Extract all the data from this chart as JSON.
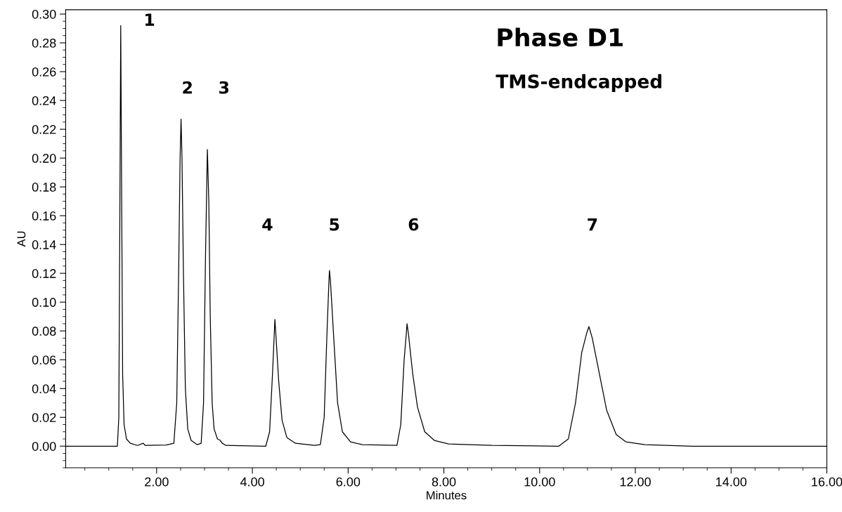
{
  "chart_data": {
    "type": "line",
    "title": "Phase D1",
    "subtitle": "TMS-endcapped",
    "xlabel": "Minutes",
    "ylabel": "AU",
    "series": [
      {
        "color": "#000000",
        "x": [
          0.1,
          1.0,
          1.18,
          1.21,
          1.23,
          1.25,
          1.27,
          1.29,
          1.32,
          1.37,
          1.45,
          1.6,
          1.72,
          1.76,
          2.2,
          2.36,
          2.42,
          2.46,
          2.49,
          2.51,
          2.53,
          2.56,
          2.6,
          2.65,
          2.72,
          2.85,
          2.93,
          2.98,
          3.02,
          3.06,
          3.09,
          3.12,
          3.16,
          3.2,
          3.27,
          3.33,
          3.37,
          3.45,
          4.28,
          4.36,
          4.42,
          4.46,
          4.47,
          4.49,
          4.55,
          4.62,
          4.72,
          4.9,
          5.3,
          5.42,
          5.5,
          5.56,
          5.6,
          5.61,
          5.63,
          5.7,
          5.78,
          5.88,
          6.05,
          6.3,
          7.02,
          7.1,
          7.17,
          7.22,
          7.23,
          7.26,
          7.35,
          7.45,
          7.6,
          7.8,
          8.1,
          9.0,
          10.4,
          10.6,
          10.75,
          10.88,
          10.98,
          11.03,
          11.1,
          11.25,
          11.4,
          11.6,
          11.8,
          12.2,
          13.2,
          16.0
        ],
        "values": [
          0.0,
          0.0,
          0.0,
          0.02,
          0.15,
          0.292,
          0.17,
          0.05,
          0.015,
          0.005,
          0.002,
          0.0005,
          0.002,
          0.0005,
          0.0008,
          0.002,
          0.03,
          0.12,
          0.2,
          0.227,
          0.2,
          0.12,
          0.04,
          0.012,
          0.004,
          0.001,
          0.002,
          0.03,
          0.13,
          0.206,
          0.17,
          0.09,
          0.03,
          0.012,
          0.005,
          0.004,
          0.002,
          0.0005,
          0.0,
          0.01,
          0.05,
          0.08,
          0.088,
          0.078,
          0.045,
          0.018,
          0.006,
          0.002,
          0.0005,
          0.001,
          0.02,
          0.08,
          0.115,
          0.122,
          0.115,
          0.075,
          0.03,
          0.01,
          0.003,
          0.001,
          0.0005,
          0.015,
          0.06,
          0.08,
          0.085,
          0.078,
          0.05,
          0.027,
          0.01,
          0.004,
          0.0015,
          0.0005,
          0.0,
          0.005,
          0.03,
          0.065,
          0.078,
          0.083,
          0.075,
          0.05,
          0.025,
          0.008,
          0.003,
          0.001,
          0.0,
          0.0
        ]
      }
    ],
    "xlim": [
      0.1,
      16.0
    ],
    "ylim": [
      -0.015,
      0.303
    ],
    "xticks": [
      {
        "value": 2,
        "label": "2.00"
      },
      {
        "value": 4,
        "label": "4.00"
      },
      {
        "value": 6,
        "label": "6.00"
      },
      {
        "value": 8,
        "label": "8.00"
      },
      {
        "value": 10,
        "label": "10.00"
      },
      {
        "value": 12,
        "label": "12.00"
      },
      {
        "value": 14,
        "label": "14.00"
      },
      {
        "value": 16,
        "label": "16.00"
      }
    ],
    "yticks": [
      {
        "value": 0,
        "label": "0.00"
      },
      {
        "value": 0.02,
        "label": "0.02"
      },
      {
        "value": 0.04,
        "label": "0.04"
      },
      {
        "value": 0.06,
        "label": "0.06"
      },
      {
        "value": 0.08,
        "label": "0.08"
      },
      {
        "value": 0.1,
        "label": "0.10"
      },
      {
        "value": 0.12,
        "label": "0.12"
      },
      {
        "value": 0.14,
        "label": "0.14"
      },
      {
        "value": 0.16,
        "label": "0.16"
      },
      {
        "value": 0.18,
        "label": "0.18"
      },
      {
        "value": 0.2,
        "label": "0.20"
      },
      {
        "value": 0.22,
        "label": "0.22"
      },
      {
        "value": 0.24,
        "label": "0.24"
      },
      {
        "value": 0.26,
        "label": "0.26"
      },
      {
        "value": 0.28,
        "label": "0.28"
      },
      {
        "value": 0.3,
        "label": "0.30"
      }
    ],
    "grid": false,
    "legend": false,
    "annotations": [
      "1",
      "2",
      "3",
      "4",
      "5",
      "6",
      "7"
    ]
  }
}
